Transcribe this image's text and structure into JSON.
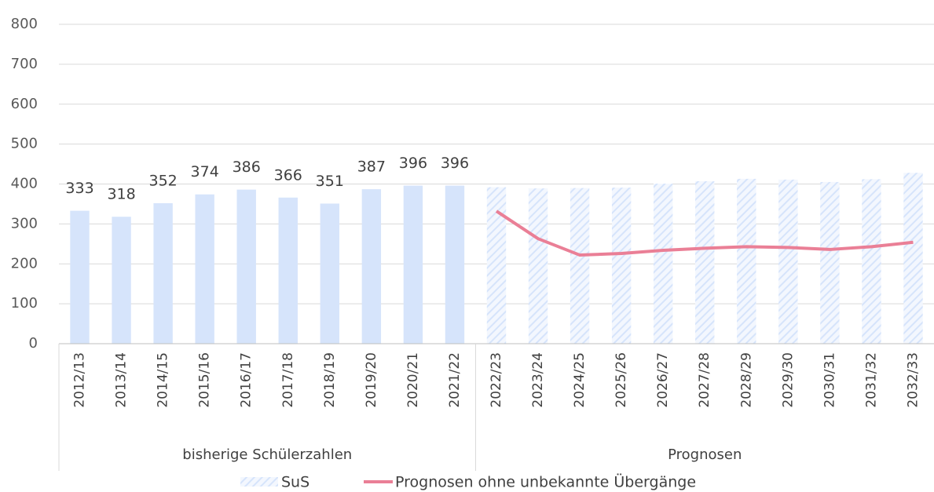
{
  "chart_data": {
    "type": "bar_line",
    "categories": [
      "2012/13",
      "2013/14",
      "2014/15",
      "2015/16",
      "2016/17",
      "2017/18",
      "2018/19",
      "2019/20",
      "2020/21",
      "2021/22",
      "2022/23",
      "2023/24",
      "2024/25",
      "2025/26",
      "2026/27",
      "2027/28",
      "2028/29",
      "2029/30",
      "2030/31",
      "2031/32",
      "2032/33"
    ],
    "groups": [
      {
        "label": "bisherige Schülerzahlen",
        "count": 10,
        "hatched": false
      },
      {
        "label": "Prognosen",
        "count": 11,
        "hatched": true
      }
    ],
    "series": [
      {
        "name": "SuS",
        "color": "#d6e4fb",
        "kind": "bar",
        "values": [
          333,
          318,
          352,
          374,
          386,
          366,
          351,
          387,
          396,
          396,
          392,
          389,
          390,
          391,
          401,
          407,
          413,
          411,
          405,
          412,
          428
        ],
        "value_labels": [
          "333",
          "318",
          "352",
          "374",
          "386",
          "366",
          "351",
          "387",
          "396",
          "396",
          null,
          null,
          null,
          null,
          null,
          null,
          null,
          null,
          null,
          null,
          null
        ]
      },
      {
        "name": "Prognosen ohne unbekannte Übergänge",
        "color": "#ea7f96",
        "kind": "line",
        "values": [
          null,
          null,
          null,
          null,
          null,
          null,
          null,
          null,
          null,
          null,
          332,
          263,
          222,
          226,
          234,
          239,
          243,
          241,
          236,
          243,
          254
        ]
      }
    ],
    "ylim": [
      0,
      800
    ],
    "yticks": [
      0,
      100,
      200,
      300,
      400,
      500,
      600,
      700,
      800
    ],
    "grid": true,
    "legend": "bottom"
  }
}
